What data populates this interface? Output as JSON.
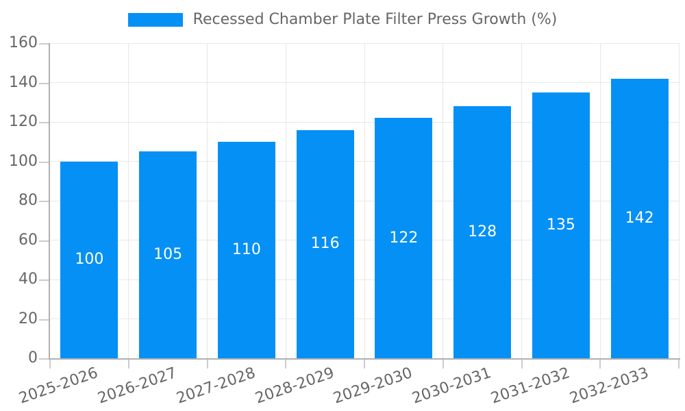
{
  "chart_data": {
    "type": "bar",
    "title": "Recessed Chamber Plate Filter Press Growth (%)",
    "categories": [
      "2025-2026",
      "2026-2027",
      "2027-2028",
      "2028-2029",
      "2029-2030",
      "2030-2031",
      "2031-2032",
      "2032-2033"
    ],
    "values": [
      100,
      105,
      110,
      116,
      122,
      128,
      135,
      142
    ],
    "xlabel": "",
    "ylabel": "",
    "ylim": [
      0,
      160
    ],
    "yticks": [
      0,
      20,
      40,
      60,
      80,
      100,
      120,
      140,
      160
    ],
    "grid": true,
    "legend_position": "top-center",
    "value_label_position": "inside-middle",
    "colors": {
      "bar": "#0590f5",
      "axis_text": "#666666",
      "value_label": "#ffffff",
      "gridline": "#e7e7e7",
      "axis_line": "#b0b0b0",
      "tick": "#cccccc"
    }
  }
}
